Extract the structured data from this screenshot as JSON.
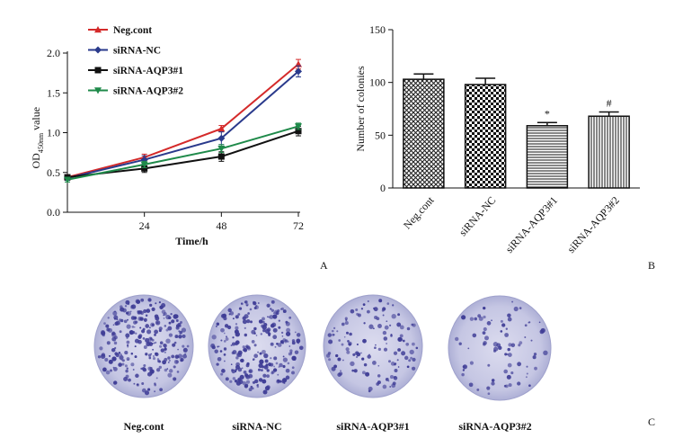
{
  "chart_data": [
    {
      "panel": "A",
      "type": "line",
      "xlabel": "Time/h",
      "ylabel_main": "OD",
      "ylabel_sub": "450nm",
      "ylabel_tail": " value",
      "x": [
        0,
        24,
        48,
        72
      ],
      "xticks": [
        "24",
        "48",
        "72"
      ],
      "xtick_values": [
        24,
        48,
        72
      ],
      "xlim": [
        0,
        72
      ],
      "ylim": [
        0,
        2.0
      ],
      "yticks": [
        "0.0",
        "0.5",
        "1.0",
        "1.5",
        "2.0"
      ],
      "ytick_values": [
        0,
        0.5,
        1.0,
        1.5,
        2.0
      ],
      "legend_position": "top-left",
      "series": [
        {
          "name": "Neg.cont",
          "color": "#d42a2a",
          "marker": "triangle-up",
          "values": [
            0.44,
            0.69,
            1.05,
            1.86
          ],
          "errors": [
            0.03,
            0.04,
            0.04,
            0.06
          ]
        },
        {
          "name": "siRNA-NC",
          "color": "#2a3a8c",
          "marker": "diamond",
          "values": [
            0.43,
            0.66,
            0.93,
            1.77
          ],
          "errors": [
            0.03,
            0.05,
            0.08,
            0.07
          ]
        },
        {
          "name": "siRNA-AQP3#1",
          "color": "#111111",
          "marker": "square",
          "values": [
            0.44,
            0.55,
            0.7,
            1.02
          ],
          "errors": [
            0.03,
            0.05,
            0.06,
            0.06
          ]
        },
        {
          "name": "siRNA-AQP3#2",
          "color": "#1f8a4a",
          "marker": "triangle-down",
          "values": [
            0.41,
            0.6,
            0.8,
            1.08
          ],
          "errors": [
            0.03,
            0.04,
            0.05,
            0.04
          ]
        }
      ]
    },
    {
      "panel": "B",
      "type": "bar",
      "ylabel": "Number of colonies",
      "ylim": [
        0,
        150
      ],
      "yticks": [
        "0",
        "50",
        "100",
        "150"
      ],
      "ytick_values": [
        0,
        50,
        100,
        150
      ],
      "categories": [
        "Neg.cont",
        "siRNA-NC",
        "siRNA-AQP3#1",
        "siRNA-AQP3#2"
      ],
      "values": [
        103,
        98,
        59,
        68
      ],
      "errors": [
        5,
        6,
        3,
        4
      ],
      "patterns": [
        "crosshatch",
        "checker",
        "horizontal",
        "vertical"
      ],
      "annotations": [
        "",
        "",
        "*",
        "#"
      ]
    }
  ],
  "panel_labels": {
    "a": "A",
    "b": "B",
    "c": "C"
  },
  "plates": {
    "labels": [
      "Neg.cont",
      "siRNA-NC",
      "siRNA-AQP3#1",
      "siRNA-AQP3#2"
    ],
    "colony_density": [
      1.0,
      0.95,
      0.5,
      0.3
    ],
    "plate_color": "#c8c9e6",
    "colony_color": "#3f3d96"
  }
}
